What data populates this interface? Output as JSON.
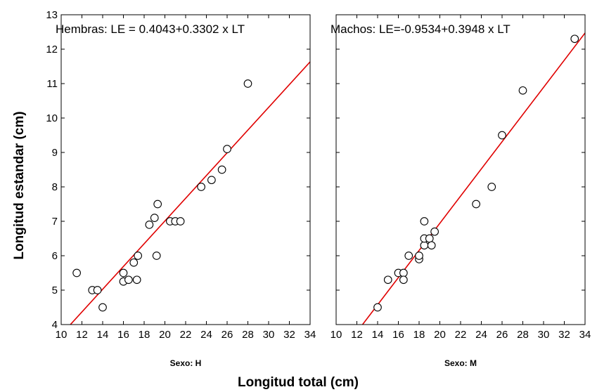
{
  "chart_data": {
    "type": "scatter",
    "ylabel": "Longitud estandar (cm)",
    "xlabel": "Longitud total (cm)",
    "ylim": [
      4,
      13
    ],
    "yticks": [
      4,
      5,
      6,
      7,
      8,
      9,
      10,
      11,
      12,
      13
    ],
    "xlim": [
      10,
      34
    ],
    "xticks": [
      10,
      12,
      14,
      16,
      18,
      20,
      22,
      24,
      26,
      28,
      30,
      32,
      34
    ],
    "grid": false,
    "marker_color": "#000000",
    "line_color": "#e00000",
    "panels": [
      {
        "label": "Sexo: H",
        "equation": "Hembras: LE = 0.4043+0.3302 x LT",
        "intercept": 0.4043,
        "slope": 0.3302,
        "points": [
          [
            11.5,
            5.5
          ],
          [
            13.0,
            5.0
          ],
          [
            13.5,
            5.0
          ],
          [
            14.0,
            4.5
          ],
          [
            16.0,
            5.5
          ],
          [
            16.0,
            5.25
          ],
          [
            16.5,
            5.3
          ],
          [
            17.0,
            5.8
          ],
          [
            17.3,
            5.3
          ],
          [
            17.4,
            6.0
          ],
          [
            18.5,
            6.9
          ],
          [
            19.0,
            7.1
          ],
          [
            19.3,
            7.5
          ],
          [
            19.2,
            6.0
          ],
          [
            20.5,
            7.0
          ],
          [
            21.0,
            7.0
          ],
          [
            21.5,
            7.0
          ],
          [
            23.5,
            8.0
          ],
          [
            24.5,
            8.2
          ],
          [
            25.5,
            8.5
          ],
          [
            26.0,
            9.1
          ],
          [
            28.0,
            11.0
          ]
        ]
      },
      {
        "label": "Sexo: M",
        "equation": "Machos: LE=-0.9534+0.3948 x LT",
        "intercept": -0.9534,
        "slope": 0.3948,
        "points": [
          [
            14.0,
            4.5
          ],
          [
            15.0,
            5.3
          ],
          [
            16.0,
            5.5
          ],
          [
            16.5,
            5.5
          ],
          [
            16.5,
            5.3
          ],
          [
            17.0,
            6.0
          ],
          [
            18.0,
            5.9
          ],
          [
            18.0,
            6.0
          ],
          [
            18.5,
            6.3
          ],
          [
            18.5,
            6.5
          ],
          [
            18.5,
            7.0
          ],
          [
            19.0,
            6.5
          ],
          [
            19.2,
            6.3
          ],
          [
            19.5,
            6.7
          ],
          [
            23.5,
            7.5
          ],
          [
            25.0,
            8.0
          ],
          [
            26.0,
            9.5
          ],
          [
            28.0,
            10.8
          ],
          [
            33.0,
            12.3
          ]
        ]
      }
    ]
  }
}
